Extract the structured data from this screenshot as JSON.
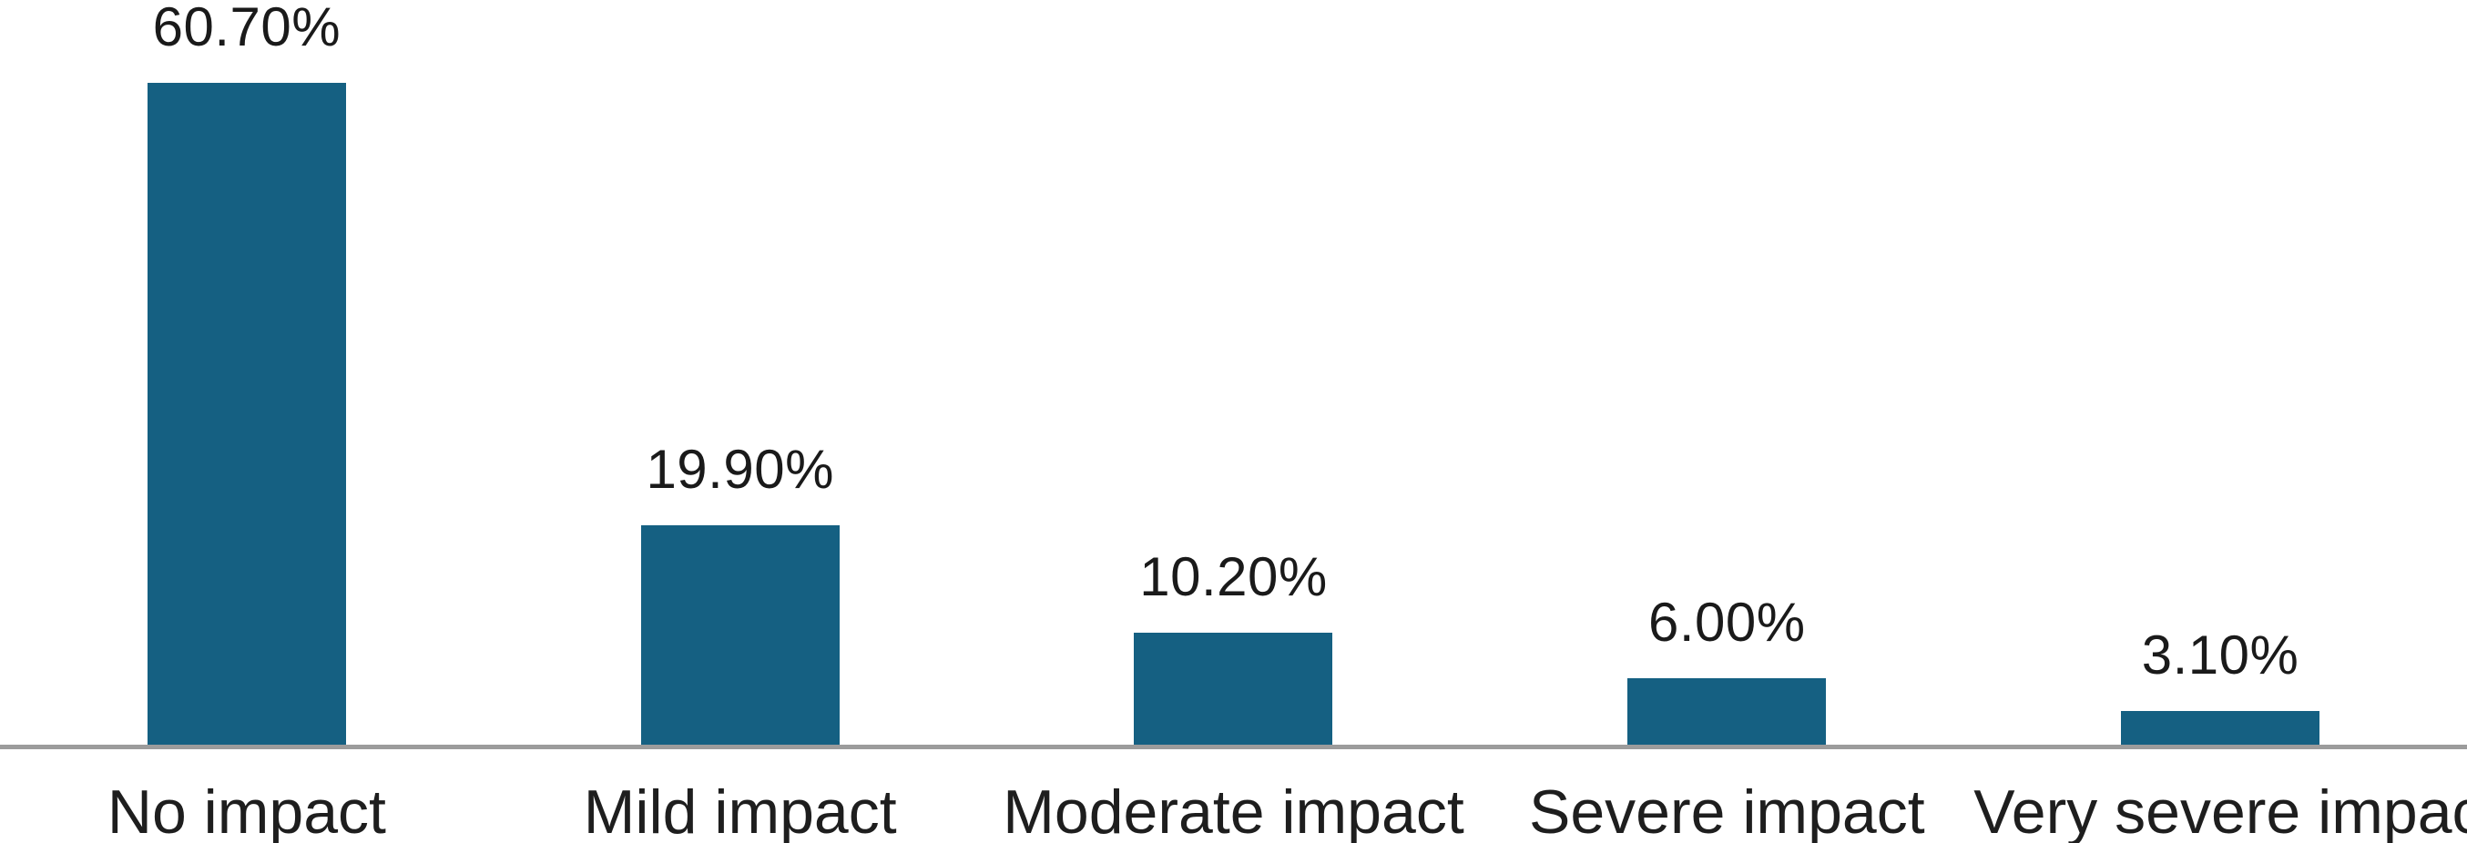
{
  "chart_data": {
    "type": "bar",
    "title": "",
    "xlabel": "",
    "ylabel": "",
    "categories": [
      "No impact",
      "Mild impact",
      "Moderate impact",
      "Severe impact",
      "Very severe impact"
    ],
    "values": [
      60.7,
      19.9,
      10.2,
      6.0,
      3.1
    ],
    "value_labels": [
      "60.70%",
      "19.90%",
      "10.20%",
      "6.00%",
      "3.10%"
    ],
    "ylim": [
      0,
      65
    ],
    "grid": false,
    "legend_position": "none",
    "bar_color": "#156082",
    "axis_line_color": "#9c9c9c",
    "label_color": "#1a1a1a"
  }
}
